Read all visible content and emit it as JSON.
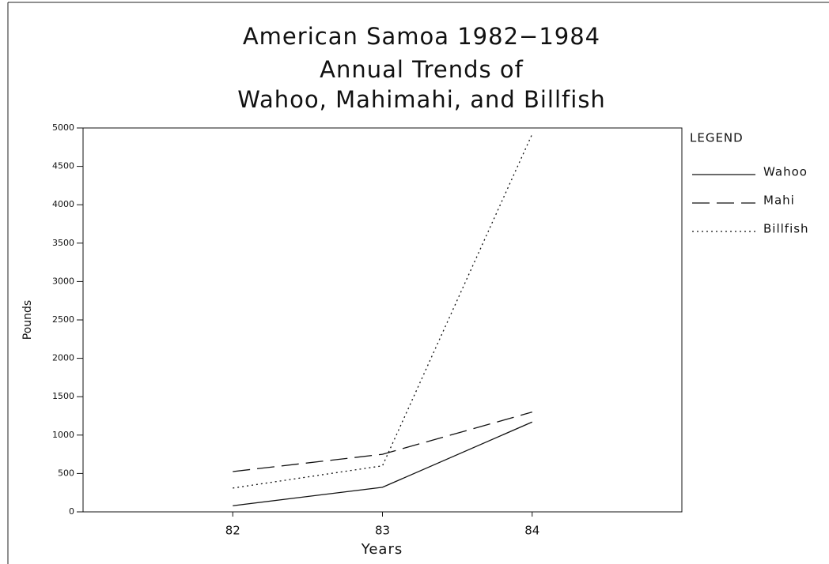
{
  "chart_data": {
    "type": "line",
    "title": [
      "American Samoa 1982−1984",
      "Annual Trends of",
      "Wahoo, Mahimahi, and Billfish"
    ],
    "x_label": "Years",
    "y_label": "Pounds",
    "legend_title": "LEGEND",
    "categories": [
      "82",
      "83",
      "84"
    ],
    "series": [
      {
        "name": "Wahoo",
        "color": "#111111",
        "linestyle": "solid",
        "values": [
          80,
          320,
          1170
        ]
      },
      {
        "name": "Mahi",
        "color": "#111111",
        "linestyle": "dashed",
        "values": [
          525,
          750,
          1300
        ]
      },
      {
        "name": "Billfish",
        "color": "#111111",
        "linestyle": "dotted",
        "values": [
          310,
          600,
          4920
        ]
      }
    ],
    "ylim": [
      0,
      5000
    ],
    "yticks": [
      0,
      500,
      1000,
      1500,
      2000,
      2500,
      3000,
      3500,
      4000,
      4500,
      5000
    ],
    "grid": false
  }
}
